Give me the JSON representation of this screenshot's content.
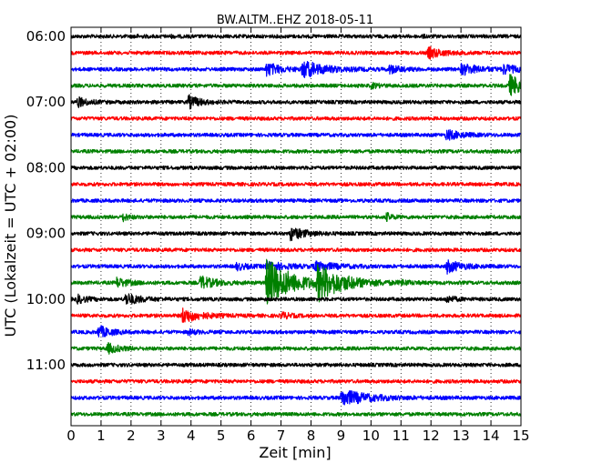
{
  "chart_data": {
    "type": "line",
    "title": "BW.ALTM..EHZ 2018-05-11",
    "xlabel": "Zeit  [min]",
    "ylabel": "UTC (Lokalzeit = UTC + 02:00)",
    "xlim": [
      0,
      15
    ],
    "x_ticks": [
      "0",
      "1",
      "2",
      "3",
      "4",
      "5",
      "6",
      "7",
      "8",
      "9",
      "10",
      "11",
      "12",
      "13",
      "14",
      "15"
    ],
    "y_tick_labels": [
      "06:00",
      "07:00",
      "08:00",
      "09:00",
      "10:00",
      "11:00"
    ],
    "trace_interval_min": 15,
    "first_trace": "06:00",
    "grid": "vertical dotted at each minute",
    "series_colors": [
      "#000000",
      "#ff0000",
      "#0000ff",
      "#008000"
    ],
    "traces": [
      {
        "start": "06:00",
        "color": "#000000",
        "events": [
          [
            2.1,
            0.15,
            0.4
          ],
          [
            3.3,
            0.1,
            0.3
          ],
          [
            11.7,
            0.1,
            0.3
          ]
        ]
      },
      {
        "start": "06:15",
        "color": "#ff0000",
        "events": [
          [
            11.9,
            0.7,
            0.9
          ]
        ]
      },
      {
        "start": "06:30",
        "color": "#0000ff",
        "events": [
          [
            6.5,
            0.8,
            1.0
          ],
          [
            7.7,
            1.0,
            1.6
          ],
          [
            10.6,
            0.5,
            0.8
          ],
          [
            13.0,
            0.7,
            1.2
          ],
          [
            14.4,
            0.6,
            0.8
          ]
        ]
      },
      {
        "start": "06:45",
        "color": "#008000",
        "events": [
          [
            10.0,
            0.3,
            0.5
          ],
          [
            14.6,
            1.3,
            1.2
          ]
        ]
      },
      {
        "start": "07:00",
        "color": "#000000",
        "events": [
          [
            0.2,
            0.6,
            0.7
          ],
          [
            3.9,
            0.8,
            0.8
          ]
        ]
      },
      {
        "start": "07:15",
        "color": "#ff0000",
        "events": []
      },
      {
        "start": "07:30",
        "color": "#0000ff",
        "events": [
          [
            12.5,
            0.6,
            1.0
          ]
        ]
      },
      {
        "start": "07:45",
        "color": "#008000",
        "events": []
      },
      {
        "start": "08:00",
        "color": "#000000",
        "events": []
      },
      {
        "start": "08:15",
        "color": "#ff0000",
        "events": []
      },
      {
        "start": "08:30",
        "color": "#0000ff",
        "events": []
      },
      {
        "start": "08:45",
        "color": "#008000",
        "events": [
          [
            1.7,
            0.5,
            0.4
          ],
          [
            10.5,
            0.5,
            0.4
          ]
        ]
      },
      {
        "start": "09:00",
        "color": "#000000",
        "events": [
          [
            7.3,
            0.8,
            1.0
          ]
        ]
      },
      {
        "start": "09:15",
        "color": "#ff0000",
        "events": []
      },
      {
        "start": "09:30",
        "color": "#0000ff",
        "events": [
          [
            5.5,
            0.4,
            0.8
          ],
          [
            6.5,
            0.5,
            1.5
          ],
          [
            8.1,
            0.5,
            1.5
          ],
          [
            12.5,
            0.8,
            1.0
          ]
        ]
      },
      {
        "start": "09:45",
        "color": "#008000",
        "events": [
          [
            1.5,
            0.6,
            0.8
          ],
          [
            4.3,
            0.8,
            1.0
          ],
          [
            6.5,
            3.0,
            1.8
          ],
          [
            8.2,
            2.0,
            1.8
          ],
          [
            11.0,
            0.3,
            0.4
          ]
        ]
      },
      {
        "start": "10:00",
        "color": "#000000",
        "events": [
          [
            0.2,
            0.5,
            0.6
          ],
          [
            1.8,
            0.7,
            1.0
          ],
          [
            12.5,
            0.4,
            0.6
          ]
        ]
      },
      {
        "start": "10:15",
        "color": "#ff0000",
        "events": [
          [
            3.7,
            0.9,
            1.2
          ],
          [
            7.0,
            0.4,
            0.6
          ]
        ]
      },
      {
        "start": "10:30",
        "color": "#0000ff",
        "events": [
          [
            0.9,
            0.8,
            0.8
          ],
          [
            3.9,
            0.3,
            0.6
          ]
        ]
      },
      {
        "start": "10:45",
        "color": "#008000",
        "events": [
          [
            1.2,
            0.6,
            0.8
          ]
        ]
      },
      {
        "start": "11:00",
        "color": "#000000",
        "events": []
      },
      {
        "start": "11:15",
        "color": "#ff0000",
        "events": []
      },
      {
        "start": "11:30",
        "color": "#0000ff",
        "events": [
          [
            9.0,
            1.0,
            1.8
          ]
        ]
      },
      {
        "start": "11:45",
        "color": "#008000",
        "events": []
      }
    ]
  }
}
